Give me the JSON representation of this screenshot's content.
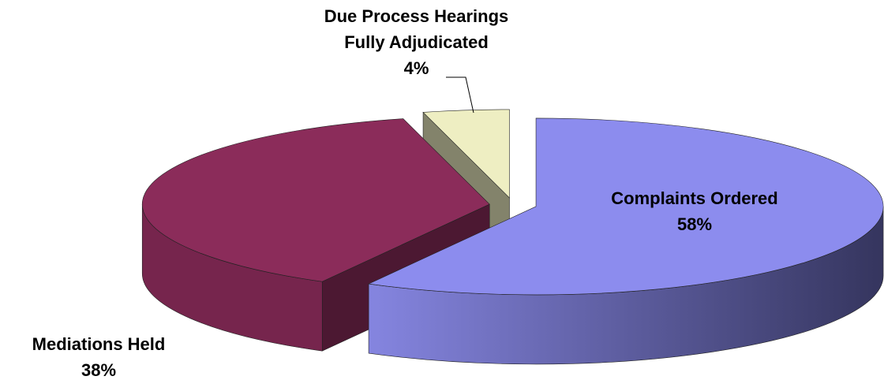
{
  "chart_data": {
    "type": "pie3d",
    "categories": [
      "Complaints Ordered",
      "Mediations Held",
      "Due Process Hearings Fully Adjudicated"
    ],
    "values": [
      58,
      38,
      4
    ],
    "value_labels": [
      "58%",
      "38%",
      "4%"
    ],
    "colors": [
      "#8c8cee",
      "#8b2c5a",
      "#eeeec2"
    ]
  }
}
